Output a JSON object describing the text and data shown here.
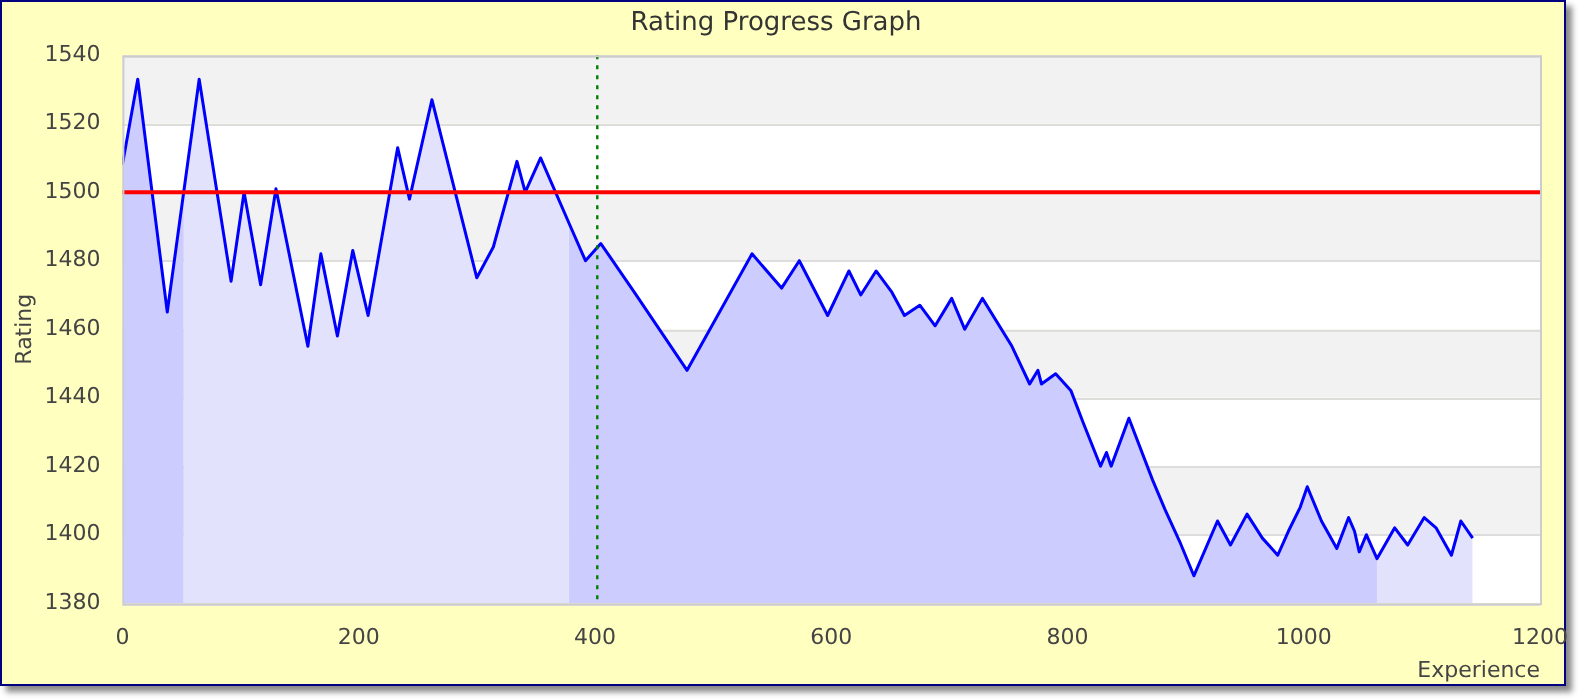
{
  "chart_data": {
    "type": "line",
    "title": "Rating Progress Graph",
    "xlabel": "Experience",
    "ylabel": "Rating",
    "xlim": [
      0,
      1200
    ],
    "xticks": [
      0,
      200,
      400,
      600,
      800,
      1000,
      1200
    ],
    "ylim": [
      1380,
      1540
    ],
    "yticks": [
      1380,
      1400,
      1420,
      1440,
      1460,
      1480,
      1500,
      1520,
      1540
    ],
    "grid": "y",
    "legend": false,
    "marker": "none",
    "line_style": "solid",
    "series": [
      {
        "color": "#0000ff",
        "x": [
          0,
          13,
          38,
          65,
          92,
          103,
          117,
          130,
          157,
          168,
          182,
          195,
          208,
          233,
          243,
          262,
          300,
          314,
          334,
          341,
          354,
          378,
          392,
          405,
          433,
          478,
          533,
          558,
          573,
          597,
          615,
          625,
          638,
          651,
          662,
          675,
          688,
          702,
          713,
          728,
          753,
          768,
          775,
          778,
          790,
          803,
          813,
          828,
          833,
          837,
          852,
          872,
          883,
          895,
          907,
          927,
          938,
          952,
          965,
          978,
          987,
          997,
          1003,
          1015,
          1028,
          1038,
          1043,
          1047,
          1053,
          1062,
          1077,
          1088,
          1102,
          1112,
          1125,
          1133,
          1143
        ],
        "values": [
          1508,
          1533,
          1465,
          1533,
          1474,
          1500,
          1473,
          1501,
          1455,
          1482,
          1458,
          1483,
          1464,
          1513,
          1498,
          1527,
          1475,
          1484,
          1509,
          1500,
          1510,
          1491,
          1480,
          1485,
          1471,
          1448,
          1482,
          1472,
          1480,
          1464,
          1477,
          1470,
          1477,
          1471,
          1464,
          1467,
          1461,
          1469,
          1460,
          1469,
          1455,
          1444,
          1448,
          1444,
          1447,
          1442,
          1433,
          1420,
          1424,
          1420,
          1434,
          1416,
          1407,
          1398,
          1388,
          1404,
          1397,
          1406,
          1399,
          1394,
          1401,
          1408,
          1414,
          1404,
          1396,
          1405,
          1401,
          1395,
          1400,
          1393,
          1402,
          1397,
          1405,
          1402,
          1394,
          1404,
          1399
        ]
      },
      {
        "type": "area",
        "color": "#ccccff",
        "x": [
          0,
          13,
          38,
          52
        ],
        "values": [
          1508,
          1533,
          1465,
          1500
        ]
      },
      {
        "type": "area",
        "color": "#e2e2fc",
        "x": [
          52,
          65,
          92,
          103,
          117,
          130,
          157,
          168,
          182,
          195,
          208,
          233,
          243,
          262,
          300,
          314,
          334,
          341,
          354,
          378
        ],
        "values": [
          1500,
          1533,
          1474,
          1500,
          1473,
          1501,
          1455,
          1482,
          1458,
          1483,
          1464,
          1513,
          1498,
          1527,
          1475,
          1484,
          1509,
          1500,
          1510,
          1491
        ]
      },
      {
        "type": "area",
        "color": "#ccccff",
        "x": [
          378,
          392,
          405,
          433,
          478,
          533,
          558,
          573,
          597,
          615,
          625,
          638,
          651,
          662,
          675,
          688,
          702,
          713,
          728,
          753,
          768,
          775,
          778,
          790,
          803,
          813,
          828,
          833,
          837,
          852,
          872,
          883,
          895,
          907,
          927,
          938,
          952,
          965,
          978,
          987,
          997,
          1003,
          1015,
          1028,
          1038,
          1043,
          1047,
          1053,
          1062
        ],
        "values": [
          1491,
          1480,
          1485,
          1471,
          1448,
          1482,
          1472,
          1480,
          1464,
          1477,
          1470,
          1477,
          1471,
          1464,
          1467,
          1461,
          1469,
          1460,
          1469,
          1455,
          1444,
          1448,
          1444,
          1447,
          1442,
          1433,
          1420,
          1424,
          1420,
          1434,
          1416,
          1407,
          1398,
          1388,
          1404,
          1397,
          1406,
          1399,
          1394,
          1401,
          1408,
          1414,
          1404,
          1396,
          1405,
          1401,
          1395,
          1400,
          1393
        ]
      },
      {
        "type": "area",
        "color": "#e2e2fc",
        "x": [
          1062,
          1077,
          1088,
          1102,
          1112,
          1125,
          1133,
          1143
        ],
        "values": [
          1393,
          1402,
          1397,
          1405,
          1402,
          1394,
          1404,
          1399
        ]
      }
    ],
    "ref_lines": [
      {
        "axis": "y",
        "value": 1500,
        "color": "#ff0000",
        "line_style": "solid"
      },
      {
        "axis": "x",
        "value": 402,
        "color": "#008000",
        "line_style": "dotted"
      }
    ]
  }
}
